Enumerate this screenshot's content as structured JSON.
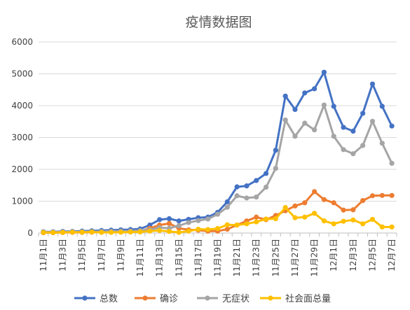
{
  "chart_data": {
    "type": "line",
    "title": "疫情数据图",
    "xlabel": "",
    "ylabel": "",
    "ylim": [
      0,
      6000
    ],
    "yticks": [
      0,
      1000,
      2000,
      3000,
      4000,
      5000,
      6000
    ],
    "grid": true,
    "legend_position": "bottom",
    "categories": [
      "11月1日",
      "11月2日",
      "11月3日",
      "11月4日",
      "11月5日",
      "11月6日",
      "11月7日",
      "11月8日",
      "11月9日",
      "11月10日",
      "11月11日",
      "11月12日",
      "11月13日",
      "11月14日",
      "11月15日",
      "11月16日",
      "11月17日",
      "11月18日",
      "11月19日",
      "11月20日",
      "11月21日",
      "11月22日",
      "11月23日",
      "11月24日",
      "11月25日",
      "11月26日",
      "11月27日",
      "11月28日",
      "11月29日",
      "11月30日",
      "12月1日",
      "12月2日",
      "12月3日",
      "12月4日",
      "12月5日",
      "12月6日",
      "12月7日"
    ],
    "x_tick_labels": [
      "11月1日",
      "",
      "11月3日",
      "",
      "11月5日",
      "",
      "11月7日",
      "",
      "11月9日",
      "",
      "11月11日",
      "",
      "11月13日",
      "",
      "11月15日",
      "",
      "11月17日",
      "",
      "11月19日",
      "",
      "11月21日",
      "",
      "11月23日",
      "",
      "11月25日",
      "",
      "11月27日",
      "",
      "11月29日",
      "",
      "12月1日",
      "",
      "12月3日",
      "",
      "12月5日",
      "",
      "12月7日"
    ],
    "series": [
      {
        "name": "总数",
        "color": "#4472C4",
        "values": [
          40,
          40,
          50,
          50,
          60,
          70,
          80,
          90,
          100,
          110,
          130,
          250,
          420,
          450,
          380,
          430,
          480,
          500,
          650,
          980,
          1450,
          1480,
          1650,
          1870,
          2600,
          4300,
          3880,
          4400,
          4530,
          5050,
          3980,
          3320,
          3200,
          3760,
          4680,
          3980,
          3360
        ]
      },
      {
        "name": "确诊",
        "color": "#ED7D31",
        "values": [
          10,
          10,
          15,
          20,
          20,
          25,
          30,
          35,
          40,
          45,
          50,
          150,
          250,
          300,
          150,
          100,
          90,
          60,
          60,
          120,
          250,
          380,
          500,
          420,
          550,
          700,
          850,
          950,
          1300,
          1050,
          950,
          720,
          730,
          1020,
          1170,
          1180,
          1180
        ]
      },
      {
        "name": "无症状",
        "color": "#A5A5A5",
        "values": [
          30,
          30,
          35,
          40,
          40,
          45,
          50,
          55,
          60,
          65,
          80,
          100,
          170,
          150,
          230,
          330,
          390,
          440,
          590,
          810,
          1170,
          1100,
          1130,
          1440,
          2030,
          3550,
          3040,
          3450,
          3240,
          4020,
          3040,
          2620,
          2490,
          2750,
          3510,
          2820,
          2190
        ]
      },
      {
        "name": "社会面总量",
        "color": "#FFC000",
        "values": [
          20,
          15,
          20,
          25,
          25,
          30,
          20,
          20,
          25,
          30,
          35,
          60,
          80,
          50,
          20,
          60,
          120,
          110,
          140,
          260,
          250,
          290,
          350,
          440,
          450,
          800,
          480,
          500,
          620,
          380,
          290,
          370,
          410,
          290,
          430,
          190,
          190
        ]
      }
    ]
  }
}
